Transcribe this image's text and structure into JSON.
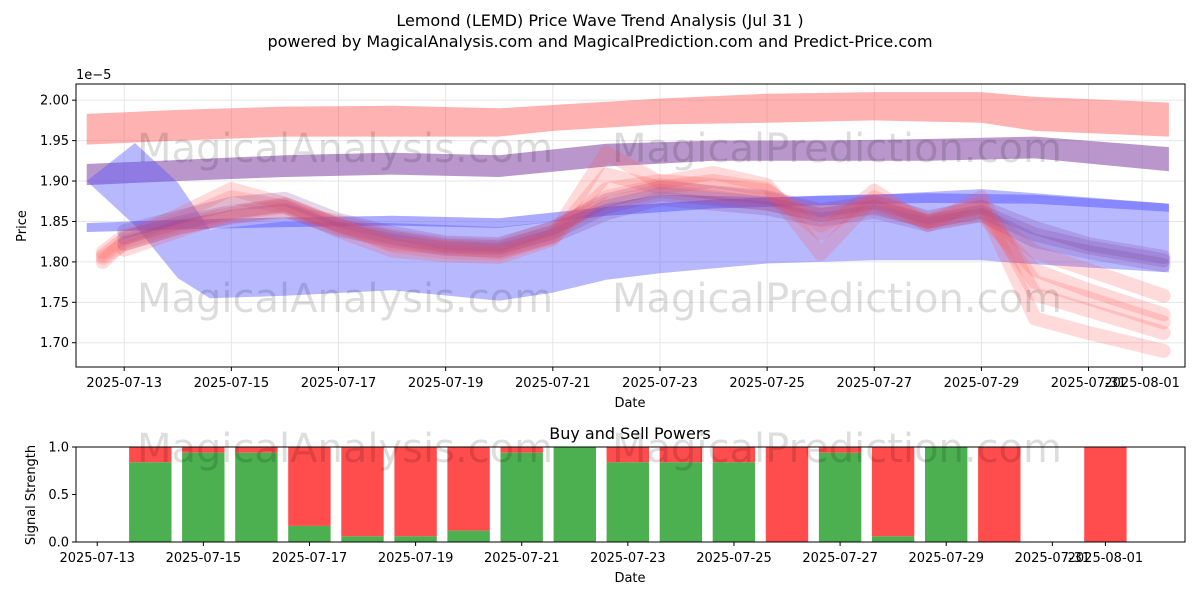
{
  "title_line1": "Lemond (LEMD) Price Wave Trend Analysis (Jul 31 )",
  "title_line2": "powered by MagicalAnalysis.com and MagicalPrediction.com and Predict-Price.com",
  "watermark_left": "MagicalAnalysis.com",
  "watermark_right": "MagicalPrediction.com",
  "colors": {
    "red": "#ff5555",
    "blue": "#5555ff",
    "purple": "#8040a0",
    "buy": "#4caf50",
    "sell": "#ff4d4d"
  },
  "chart_data": [
    {
      "type": "line",
      "name": "price-wave-chart",
      "xlabel": "Date",
      "ylabel": "Price",
      "y_offset_label": "1e−5",
      "y_scale": 1e-05,
      "ylim": [
        1.67,
        2.02
      ],
      "xlim": [
        11.1,
        31.8
      ],
      "x_ticks": [
        {
          "x": 12,
          "label": "2025-07-13"
        },
        {
          "x": 14,
          "label": "2025-07-15"
        },
        {
          "x": 16,
          "label": "2025-07-17"
        },
        {
          "x": 18,
          "label": "2025-07-19"
        },
        {
          "x": 20,
          "label": "2025-07-21"
        },
        {
          "x": 22,
          "label": "2025-07-23"
        },
        {
          "x": 24,
          "label": "2025-07-25"
        },
        {
          "x": 26,
          "label": "2025-07-27"
        },
        {
          "x": 28,
          "label": "2025-07-29"
        },
        {
          "x": 30,
          "label": "2025-07-31"
        },
        {
          "x": 31,
          "label": "2025-08-01"
        }
      ],
      "y_ticks": [
        1.7,
        1.75,
        1.8,
        1.85,
        1.9,
        1.95,
        2.0
      ],
      "grid": true,
      "bands": [
        {
          "name": "upper-red-band",
          "color": "red",
          "opacity": 0.45,
          "x": [
            11.3,
            13,
            15,
            17,
            19,
            20,
            22,
            24,
            26,
            28,
            29,
            31.5
          ],
          "lower": [
            1.945,
            1.95,
            1.955,
            1.955,
            1.955,
            1.962,
            1.97,
            1.972,
            1.975,
            1.972,
            1.962,
            1.955
          ],
          "upper": [
            1.983,
            1.988,
            1.992,
            1.993,
            1.99,
            1.994,
            2.002,
            2.008,
            2.01,
            2.01,
            2.004,
            1.997
          ]
        },
        {
          "name": "upper-purple-band",
          "color": "purple",
          "opacity": 0.55,
          "x": [
            11.3,
            13,
            15,
            17,
            19,
            21,
            23,
            25,
            27,
            29,
            31.5
          ],
          "lower": [
            1.895,
            1.9,
            1.905,
            1.908,
            1.905,
            1.918,
            1.925,
            1.925,
            1.925,
            1.928,
            1.912
          ],
          "upper": [
            1.921,
            1.926,
            1.932,
            1.935,
            1.932,
            1.946,
            1.95,
            1.95,
            1.952,
            1.955,
            1.942
          ]
        },
        {
          "name": "wide-blue-band",
          "color": "blue",
          "opacity": 0.42,
          "x": [
            11.3,
            12.2,
            13,
            13.6,
            15,
            17,
            19,
            20,
            21,
            22,
            24,
            26,
            28,
            29,
            31.5
          ],
          "lower": [
            1.9,
            1.845,
            1.78,
            1.755,
            1.758,
            1.765,
            1.752,
            1.762,
            1.778,
            1.786,
            1.798,
            1.802,
            1.802,
            1.797,
            1.787
          ],
          "upper": [
            1.9,
            1.947,
            1.898,
            1.84,
            1.85,
            1.848,
            1.843,
            1.85,
            1.872,
            1.883,
            1.88,
            1.883,
            1.89,
            1.885,
            1.872
          ]
        },
        {
          "name": "lower-blue-band",
          "color": "blue",
          "opacity": 0.5,
          "x": [
            11.3,
            13,
            15,
            17,
            19,
            21,
            23,
            25,
            27,
            29,
            31.5
          ],
          "lower": [
            1.837,
            1.84,
            1.843,
            1.845,
            1.842,
            1.857,
            1.866,
            1.87,
            1.873,
            1.872,
            1.862
          ],
          "upper": [
            1.848,
            1.852,
            1.855,
            1.857,
            1.854,
            1.868,
            1.877,
            1.882,
            1.885,
            1.883,
            1.872
          ]
        }
      ],
      "wave_lines": [
        {
          "name": "wave-1",
          "color": "red",
          "x": [
            11.6,
            12,
            13,
            14,
            15,
            16,
            17,
            18,
            19,
            20,
            21,
            22,
            23,
            24,
            25,
            26,
            27,
            28,
            29,
            30,
            31.4
          ],
          "y": [
            1.8,
            1.825,
            1.845,
            1.86,
            1.868,
            1.842,
            1.828,
            1.818,
            1.816,
            1.838,
            1.88,
            1.895,
            1.885,
            1.878,
            1.862,
            1.872,
            1.848,
            1.858,
            1.79,
            1.765,
            1.735
          ]
        },
        {
          "name": "wave-2",
          "color": "red",
          "x": [
            11.6,
            12,
            13,
            14,
            15,
            16,
            17,
            18,
            19,
            20,
            21,
            22,
            23,
            24,
            25,
            26,
            27,
            28,
            29,
            30,
            31.4
          ],
          "y": [
            1.812,
            1.832,
            1.852,
            1.88,
            1.868,
            1.838,
            1.814,
            1.808,
            1.806,
            1.828,
            1.908,
            1.892,
            1.9,
            1.89,
            1.835,
            1.888,
            1.845,
            1.88,
            1.76,
            1.74,
            1.712
          ]
        },
        {
          "name": "wave-3",
          "color": "red",
          "x": [
            11.6,
            12,
            13,
            14,
            15,
            16,
            17,
            18,
            19,
            20,
            21,
            22,
            23,
            24,
            25,
            26,
            27,
            28,
            29,
            30,
            31.4
          ],
          "y": [
            1.808,
            1.828,
            1.858,
            1.89,
            1.872,
            1.846,
            1.82,
            1.812,
            1.81,
            1.832,
            1.935,
            1.898,
            1.91,
            1.895,
            1.81,
            1.88,
            1.852,
            1.872,
            1.73,
            1.712,
            1.69
          ]
        },
        {
          "name": "wave-4",
          "color": "red",
          "x": [
            11.6,
            12,
            13,
            14,
            15,
            16,
            17,
            18,
            19,
            20,
            21,
            22,
            23,
            24,
            25,
            26,
            27,
            28,
            29,
            30,
            31.4
          ],
          "y": [
            1.805,
            1.822,
            1.842,
            1.855,
            1.862,
            1.85,
            1.832,
            1.822,
            1.82,
            1.842,
            1.872,
            1.888,
            1.88,
            1.872,
            1.858,
            1.866,
            1.85,
            1.862,
            1.812,
            1.79,
            1.758
          ]
        },
        {
          "name": "wave-5",
          "color": "purple",
          "x": [
            12,
            13,
            14,
            15,
            16,
            17,
            18,
            19,
            20,
            21,
            22,
            23,
            24,
            25,
            26,
            27,
            28,
            29,
            30,
            31.4
          ],
          "y": [
            1.83,
            1.848,
            1.862,
            1.87,
            1.845,
            1.83,
            1.82,
            1.818,
            1.836,
            1.868,
            1.884,
            1.878,
            1.872,
            1.858,
            1.868,
            1.85,
            1.862,
            1.834,
            1.818,
            1.802
          ]
        },
        {
          "name": "wave-6",
          "color": "purple",
          "x": [
            12,
            13,
            14,
            15,
            16,
            17,
            18,
            19,
            20,
            21,
            22,
            23,
            24,
            25,
            26,
            27,
            28,
            29,
            30,
            31.4
          ],
          "y": [
            1.838,
            1.855,
            1.872,
            1.878,
            1.852,
            1.836,
            1.824,
            1.822,
            1.842,
            1.876,
            1.892,
            1.886,
            1.88,
            1.864,
            1.874,
            1.855,
            1.868,
            1.842,
            1.822,
            1.806
          ]
        },
        {
          "name": "wave-7",
          "color": "purple",
          "x": [
            12,
            13,
            14,
            15,
            16,
            17,
            18,
            19,
            20,
            21,
            22,
            23,
            24,
            25,
            26,
            27,
            28,
            29,
            30,
            31.4
          ],
          "y": [
            1.822,
            1.842,
            1.856,
            1.864,
            1.84,
            1.826,
            1.816,
            1.814,
            1.832,
            1.86,
            1.878,
            1.872,
            1.866,
            1.852,
            1.862,
            1.846,
            1.858,
            1.826,
            1.812,
            1.796
          ]
        },
        {
          "name": "wave-8",
          "color": "red",
          "x": [
            12,
            13,
            14,
            15,
            16,
            17,
            18,
            19,
            20,
            21,
            22,
            23,
            24,
            25,
            26,
            27,
            28,
            29,
            30,
            31.4
          ],
          "y": [
            1.815,
            1.838,
            1.86,
            1.872,
            1.845,
            1.822,
            1.818,
            1.812,
            1.83,
            1.89,
            1.9,
            1.895,
            1.888,
            1.845,
            1.875,
            1.85,
            1.868,
            1.775,
            1.755,
            1.725
          ]
        }
      ]
    },
    {
      "type": "bar",
      "name": "buy-sell-chart",
      "title": "Buy and Sell Powers",
      "xlabel": "Date",
      "ylabel": "Signal Strength",
      "ylim": [
        0,
        1
      ],
      "xlim": [
        11.6,
        32.5
      ],
      "y_ticks": [
        "0.0",
        "0.5",
        "1.0"
      ],
      "x_ticks": [
        {
          "x": 12,
          "label": "2025-07-13"
        },
        {
          "x": 14,
          "label": "2025-07-15"
        },
        {
          "x": 16,
          "label": "2025-07-17"
        },
        {
          "x": 18,
          "label": "2025-07-19"
        },
        {
          "x": 20,
          "label": "2025-07-21"
        },
        {
          "x": 22,
          "label": "2025-07-23"
        },
        {
          "x": 24,
          "label": "2025-07-25"
        },
        {
          "x": 26,
          "label": "2025-07-27"
        },
        {
          "x": 28,
          "label": "2025-07-29"
        },
        {
          "x": 30,
          "label": "2025-07-31"
        },
        {
          "x": 31,
          "label": "2025-08-01"
        }
      ],
      "x": [
        13,
        14,
        15,
        16,
        17,
        18,
        19,
        20,
        21,
        22,
        23,
        24,
        25,
        26,
        27,
        28,
        29,
        31
      ],
      "buy": [
        0.84,
        0.94,
        0.94,
        0.17,
        0.06,
        0.06,
        0.12,
        0.94,
        1.0,
        0.84,
        0.84,
        0.84,
        0.0,
        0.94,
        0.06,
        1.0,
        0.0,
        0.0
      ],
      "sell": [
        0.16,
        0.06,
        0.06,
        0.83,
        0.94,
        0.94,
        0.88,
        0.06,
        0.0,
        0.16,
        0.16,
        0.16,
        1.0,
        0.06,
        0.94,
        0.0,
        1.0,
        1.0
      ]
    }
  ]
}
